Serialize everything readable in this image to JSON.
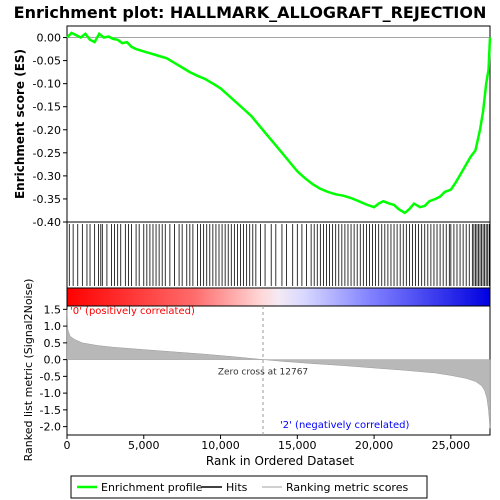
{
  "chart_data": {
    "type": "line",
    "title": "Enrichment plot: HALLMARK_ALLOGRAFT_REJECTION",
    "es_panel": {
      "ylabel": "Enrichment score (ES)",
      "ylim": [
        -0.4,
        0.025
      ],
      "yticks": [
        0.0,
        -0.05,
        -0.1,
        -0.15,
        -0.2,
        -0.25,
        -0.3,
        -0.35,
        -0.4
      ],
      "ytick_labels": [
        "0.00",
        "-0.05",
        "-0.10",
        "-0.15",
        "-0.20",
        "-0.25",
        "-0.30",
        "-0.35",
        "-0.40"
      ],
      "series": [
        {
          "name": "Enrichment profile",
          "color": "#00ff00",
          "x": [
            0,
            300,
            600,
            900,
            1200,
            1500,
            1800,
            2100,
            2400,
            2700,
            3000,
            3300,
            3600,
            3900,
            4200,
            4500,
            5000,
            5500,
            6000,
            6500,
            7000,
            7500,
            8000,
            8500,
            9000,
            9500,
            10000,
            10500,
            11000,
            11500,
            12000,
            12500,
            13000,
            13500,
            14000,
            14500,
            15000,
            15500,
            16000,
            16500,
            17000,
            17500,
            18000,
            18500,
            19000,
            19500,
            20000,
            20300,
            20600,
            21000,
            21300,
            21600,
            22000,
            22300,
            22600,
            23000,
            23300,
            23600,
            24000,
            24300,
            24600,
            25000,
            25300,
            25600,
            26000,
            26300,
            26600,
            26900,
            27100,
            27300,
            27450,
            27550
          ],
          "y": [
            0.0,
            0.01,
            0.005,
            0.0,
            0.008,
            -0.005,
            -0.01,
            0.008,
            0.0,
            0.002,
            -0.003,
            -0.005,
            -0.012,
            -0.01,
            -0.02,
            -0.025,
            -0.03,
            -0.035,
            -0.04,
            -0.045,
            -0.055,
            -0.065,
            -0.075,
            -0.083,
            -0.09,
            -0.1,
            -0.11,
            -0.125,
            -0.14,
            -0.155,
            -0.17,
            -0.19,
            -0.21,
            -0.23,
            -0.25,
            -0.27,
            -0.29,
            -0.305,
            -0.318,
            -0.328,
            -0.335,
            -0.34,
            -0.343,
            -0.348,
            -0.355,
            -0.362,
            -0.368,
            -0.36,
            -0.355,
            -0.36,
            -0.363,
            -0.372,
            -0.38,
            -0.372,
            -0.36,
            -0.368,
            -0.365,
            -0.355,
            -0.35,
            -0.345,
            -0.335,
            -0.33,
            -0.315,
            -0.298,
            -0.275,
            -0.258,
            -0.245,
            -0.2,
            -0.16,
            -0.1,
            -0.07,
            0.0
          ]
        }
      ]
    },
    "hits_panel": {
      "legend_label": "Hits",
      "x": [
        150,
        400,
        700,
        1000,
        1300,
        1500,
        1800,
        2050,
        2200,
        2300,
        2600,
        2900,
        3100,
        3300,
        3500,
        3800,
        4000,
        4200,
        4500,
        4700,
        5000,
        5200,
        5400,
        5600,
        5800,
        6000,
        6200,
        6400,
        6700,
        7000,
        7300,
        7500,
        7800,
        8000,
        8200,
        8500,
        8700,
        8900,
        9100,
        9300,
        9500,
        9700,
        9900,
        10100,
        10300,
        10500,
        10700,
        10900,
        11100,
        11300,
        11500,
        11700,
        11900,
        12100,
        12300,
        12600,
        12900,
        13300,
        13600,
        14000,
        14300,
        14700,
        15000,
        15300,
        15600,
        15900,
        16100,
        16300,
        16500,
        16700,
        16900,
        17100,
        17300,
        17500,
        17700,
        17900,
        18100,
        18300,
        18500,
        18700,
        18900,
        19100,
        19300,
        19500,
        19700,
        19900,
        20100,
        20300,
        20500,
        20700,
        20900,
        21100,
        21300,
        21500,
        21700,
        21900,
        22100,
        22300,
        22500,
        22700,
        22900,
        23100,
        23300,
        23500,
        23700,
        23900,
        24100,
        24300,
        24500,
        24700,
        24900,
        25000,
        25200,
        25400,
        25600,
        25800,
        26000,
        26200,
        26400,
        26500,
        26600,
        26700,
        26800,
        26900,
        27000,
        27100,
        27200,
        27300,
        27400,
        27500
      ]
    },
    "ranking_panel": {
      "ylabel": "Ranked list metric (Signal2Noise)",
      "xlabel": "Rank in Ordered Dataset",
      "xlim": [
        0,
        27550
      ],
      "xticks": [
        0,
        5000,
        10000,
        15000,
        20000,
        25000
      ],
      "xtick_labels": [
        "0",
        "5,000",
        "10,000",
        "15,000",
        "20,000",
        "25,000"
      ],
      "ylim": [
        -2.25,
        1.6
      ],
      "yticks": [
        1.5,
        1.0,
        0.5,
        0.0,
        -0.5,
        -1.0,
        -1.5,
        -2.0
      ],
      "ytick_labels": [
        "1.5",
        "1.0",
        "0.5",
        "0.0",
        "-0.5",
        "-1.0",
        "-1.5",
        "-2.0"
      ],
      "metric_x": [
        0,
        50,
        200,
        500,
        1000,
        2000,
        3000,
        5000,
        7000,
        9000,
        11000,
        12767,
        14000,
        16000,
        18000,
        20000,
        22000,
        24000,
        25000,
        26000,
        26600,
        27000,
        27200,
        27350,
        27450,
        27550
      ],
      "metric_y": [
        1.5,
        0.9,
        0.7,
        0.6,
        0.5,
        0.42,
        0.37,
        0.3,
        0.23,
        0.16,
        0.08,
        0.0,
        -0.05,
        -0.12,
        -0.18,
        -0.25,
        -0.32,
        -0.4,
        -0.47,
        -0.56,
        -0.65,
        -0.78,
        -0.92,
        -1.15,
        -1.5,
        -2.05
      ],
      "zero_cross_x": 12767,
      "zero_cross_label": "Zero cross at 12767",
      "pos_label": "'0' (positively correlated)",
      "neg_label": "'2' (negatively correlated)",
      "pos_color": "#ff0000",
      "neg_color": "#0000ff"
    },
    "legend": {
      "placement": "bottom",
      "entries": [
        {
          "label": "Enrichment profile",
          "color": "#00ff00"
        },
        {
          "label": "Hits",
          "color": "#000000"
        },
        {
          "label": "Ranking metric scores",
          "color": "#c0c0c0"
        }
      ]
    }
  }
}
